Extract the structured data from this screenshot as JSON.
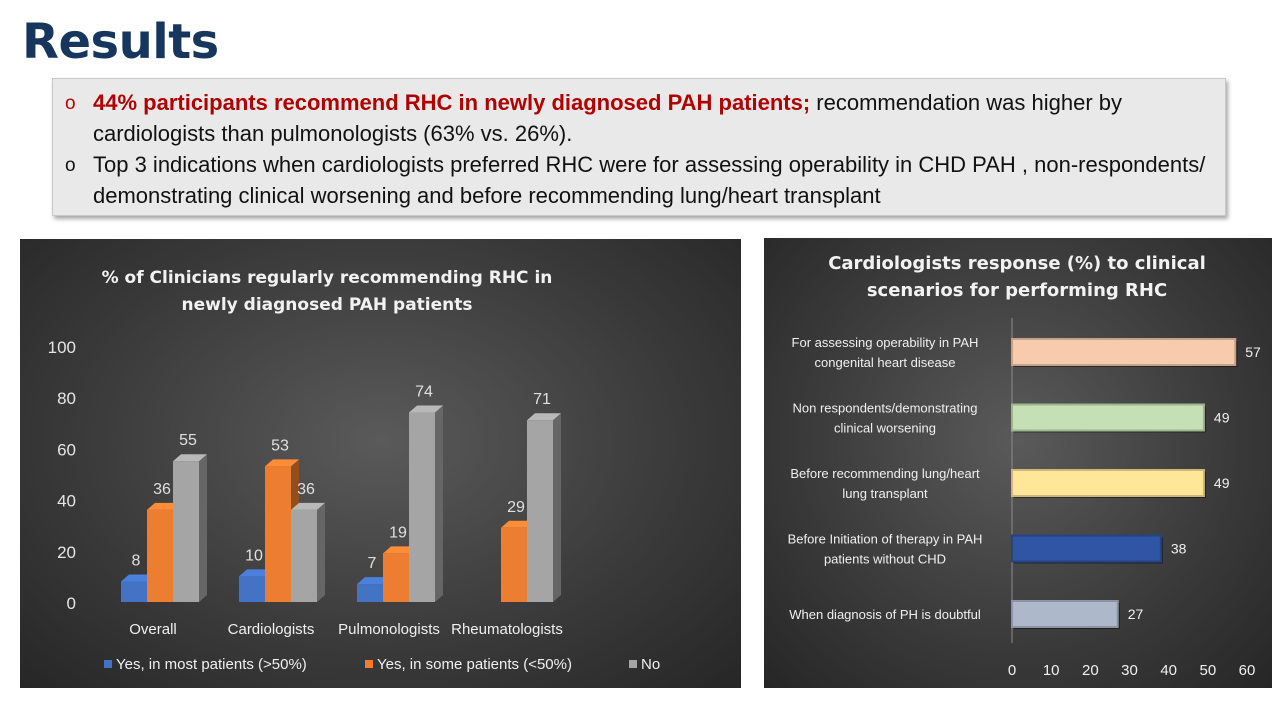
{
  "page": {
    "title": "Results"
  },
  "summary": {
    "bullet1_highlight": "44% participants recommend RHC in newly diagnosed PAH patients;",
    "bullet1_rest": " recommendation was higher by cardiologists than pulmonologists (63% vs. 26%).",
    "bullet2": "Top 3 indications when cardiologists preferred RHC were for assessing operability in CHD PAH , non-respondents/ demonstrating clinical worsening and before recommending lung/heart transplant",
    "bullet_marker": "o"
  },
  "chart_data": [
    {
      "type": "bar",
      "orientation": "vertical",
      "style": "3d-clustered",
      "title_lines": [
        "% of Clinicians  regularly  recommending  RHC  in",
        "newly diagnosed  PAH  patients"
      ],
      "categories": [
        "Overall",
        "Cardiologists",
        "Pulmonologists",
        "Rheumatologists"
      ],
      "series": [
        {
          "name": "Yes, in most patients (>50%)",
          "color": "#4472c4",
          "values": [
            8,
            10,
            7,
            null
          ]
        },
        {
          "name": "Yes, in some patients (<50%)",
          "color": "#ed7d31",
          "values": [
            36,
            53,
            19,
            29
          ]
        },
        {
          "name": "No",
          "color": "#a5a5a5",
          "values": [
            55,
            36,
            74,
            71
          ]
        }
      ],
      "ylim": [
        0,
        100
      ],
      "yticks": [
        0,
        20,
        40,
        60,
        80,
        100
      ],
      "xlabel": "",
      "ylabel": "",
      "grid": false,
      "legend_position": "bottom",
      "data_labels": true
    },
    {
      "type": "bar",
      "orientation": "horizontal",
      "title_lines": [
        "Cardiologists  response  (%)  to  clinical",
        "scenarios  for  performing  RHC"
      ],
      "categories": [
        [
          "For assessing operability in PAH",
          "congenital heart disease"
        ],
        [
          "Non respondents/demonstrating",
          "clinical worsening"
        ],
        [
          "Before recommending lung/heart",
          "lung transplant"
        ],
        [
          "Before Initiation of therapy in PAH",
          "patients without CHD"
        ],
        [
          "When diagnosis of PH is doubtful"
        ]
      ],
      "values": [
        57,
        49,
        49,
        38,
        27
      ],
      "colors": [
        "#f8cbad",
        "#c5e0b4",
        "#ffe699",
        "#2f55a4",
        "#adb9ca"
      ],
      "xlim": [
        0,
        60
      ],
      "xticks": [
        0,
        10,
        20,
        30,
        40,
        50,
        60
      ],
      "xlabel": "",
      "ylabel": "",
      "grid": false,
      "legend_position": "none",
      "data_labels": true
    }
  ]
}
